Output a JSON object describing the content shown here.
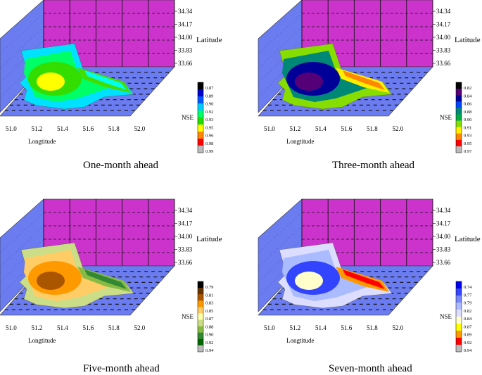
{
  "chart_data": [
    {
      "type": "contour",
      "caption": "One-month ahead",
      "xlabel": "Longtitude",
      "ylabel": "Latitude",
      "x_ticks": [
        "51.0",
        "51.2",
        "51.4",
        "51.6",
        "51.8",
        "52.0"
      ],
      "y_ticks": [
        "34.34",
        "34.17",
        "34.00",
        "33.83",
        "33.66"
      ],
      "legend_title": "NSE",
      "legend_labels": [
        "0.87",
        "0.89",
        "0.90",
        "0.92",
        "0.93",
        "0.95",
        "0.96",
        "0.98",
        "0.99"
      ],
      "legend_colors": [
        "#000000",
        "#0000cc",
        "#0055ff",
        "#00ccff",
        "#00ff66",
        "#22dd00",
        "#ffff00",
        "#ff8800",
        "#ff0000",
        "#bbbbbb"
      ],
      "bands": [
        "#00e0ff",
        "#00ff66",
        "#33dd00",
        "#ffff00",
        "#44dd00",
        "#00ffee"
      ]
    },
    {
      "type": "contour",
      "caption": "Three-month ahead",
      "xlabel": "Longtitude",
      "ylabel": "Latitude",
      "x_ticks": [
        "51.0",
        "51.2",
        "51.4",
        "51.6",
        "51.8",
        "52.0"
      ],
      "y_ticks": [
        "34.34",
        "34.17",
        "34.00",
        "33.83",
        "33.66"
      ],
      "legend_title": "NSE",
      "legend_labels": [
        "0.82",
        "0.84",
        "0.86",
        "0.88",
        "0.90",
        "0.91",
        "0.93",
        "0.95",
        "0.97"
      ],
      "legend_colors": [
        "#000000",
        "#550077",
        "#000099",
        "#0044ff",
        "#008877",
        "#00aa44",
        "#88dd00",
        "#ffee00",
        "#ff8800",
        "#ff0000",
        "#bbbbbb"
      ],
      "bands": [
        "#88dd00",
        "#008877",
        "#000099",
        "#550077",
        "#ffee00",
        "#ff8800"
      ]
    },
    {
      "type": "contour",
      "caption": "Five-month ahead",
      "xlabel": "Longtitude",
      "ylabel": "Latitude",
      "x_ticks": [
        "51.0",
        "51.2",
        "51.4",
        "51.6",
        "51.8",
        "52.0"
      ],
      "y_ticks": [
        "34.34",
        "34.17",
        "34.00",
        "33.83",
        "33.66"
      ],
      "legend_title": "NSE",
      "legend_labels": [
        "0.79",
        "0.81",
        "0.83",
        "0.85",
        "0.87",
        "0.88",
        "0.90",
        "0.92",
        "0.94"
      ],
      "legend_colors": [
        "#000000",
        "#663300",
        "#aa5500",
        "#ff9900",
        "#ffcc66",
        "#ffffaa",
        "#ccdd88",
        "#88bb44",
        "#338833",
        "#006600",
        "#bbbbbb"
      ],
      "bands": [
        "#ccdd88",
        "#ffcc66",
        "#ff9900",
        "#aa5500",
        "#88bb44",
        "#338833"
      ]
    },
    {
      "type": "contour",
      "caption": "Seven-month ahead",
      "xlabel": "Longtitude",
      "ylabel": "Latitude",
      "x_ticks": [
        "51.0",
        "51.2",
        "51.4",
        "51.6",
        "51.8",
        "52.0"
      ],
      "y_ticks": [
        "34.34",
        "34.17",
        "34.00",
        "33.83",
        "33.66"
      ],
      "legend_title": "NSE",
      "legend_labels": [
        "0.74",
        "0.77",
        "0.79",
        "0.82",
        "0.84",
        "0.87",
        "0.89",
        "0.92",
        "0.94"
      ],
      "legend_colors": [
        "#0000ee",
        "#3344ff",
        "#7788ff",
        "#aabbff",
        "#ddddff",
        "#ffffcc",
        "#ffff00",
        "#ff9900",
        "#ff0000",
        "#bbbbbb"
      ],
      "bands": [
        "#ddddff",
        "#aabbff",
        "#3344ff",
        "#ffffcc",
        "#ff9900",
        "#ff0000"
      ]
    }
  ]
}
